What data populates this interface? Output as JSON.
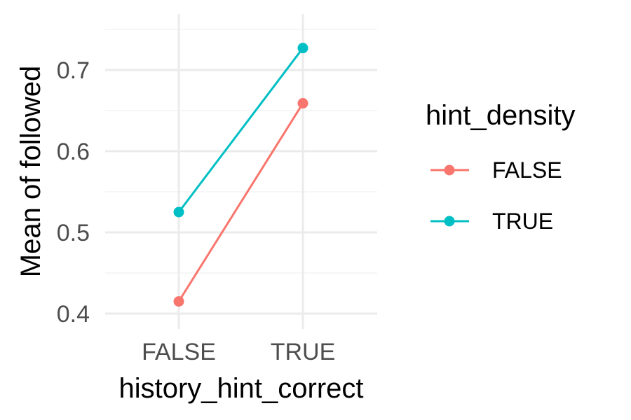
{
  "chart_data": {
    "type": "line",
    "title": "",
    "xlabel": "history_hint_correct",
    "ylabel": "Mean of followed",
    "categories": [
      "FALSE",
      "TRUE"
    ],
    "y_ticks": [
      0.4,
      0.5,
      0.6,
      0.7
    ],
    "ylim": [
      0.39,
      0.76
    ],
    "grid": true,
    "legend": {
      "title": "hint_density",
      "position": "right"
    },
    "series": [
      {
        "name": "FALSE",
        "color": "#F8766D",
        "values": [
          0.415,
          0.659
        ]
      },
      {
        "name": "TRUE",
        "color": "#00BFC4",
        "values": [
          0.525,
          0.727
        ]
      }
    ]
  }
}
